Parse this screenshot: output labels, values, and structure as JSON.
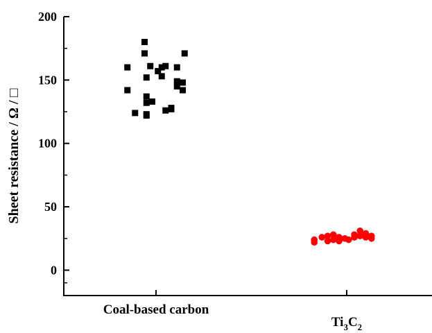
{
  "chart_data": {
    "type": "scatter",
    "title": "",
    "xlabel": "",
    "ylabel": "Sheet resistance / Ω / □",
    "categories": [
      "Coal-based carbon",
      "Ti3C2"
    ],
    "category_labels": [
      {
        "base": "Coal-based carbon",
        "sub1": "",
        "mid": "",
        "sub2": ""
      },
      {
        "base": "Ti",
        "sub1": "3",
        "mid": "C",
        "sub2": "2"
      }
    ],
    "ylim": [
      -20,
      200
    ],
    "yticks": [
      0,
      50,
      100,
      150,
      200
    ],
    "ytick_labels": [
      "0",
      "50",
      "100",
      "150",
      "200"
    ],
    "grid": false,
    "legend": "none",
    "series": [
      {
        "category": "Coal-based carbon",
        "marker": "square",
        "color": "#000000",
        "points": [
          [
            -0.15,
            160
          ],
          [
            -0.06,
            180
          ],
          [
            -0.06,
            171
          ],
          [
            0.15,
            171
          ],
          [
            -0.03,
            161
          ],
          [
            0.01,
            157
          ],
          [
            0.03,
            160
          ],
          [
            0.05,
            161
          ],
          [
            0.11,
            160
          ],
          [
            -0.15,
            142
          ],
          [
            -0.05,
            152
          ],
          [
            0.03,
            153
          ],
          [
            0.11,
            149
          ],
          [
            0.14,
            148
          ],
          [
            0.11,
            145
          ],
          [
            0.14,
            142
          ],
          [
            -0.05,
            123
          ],
          [
            -0.11,
            124
          ],
          [
            -0.05,
            122
          ],
          [
            -0.05,
            137
          ],
          [
            -0.05,
            132
          ],
          [
            -0.02,
            133
          ],
          [
            0.05,
            126
          ],
          [
            0.08,
            127
          ],
          [
            0.08,
            128
          ]
        ]
      },
      {
        "category": "Ti3C2",
        "marker": "circle",
        "color": "#ff0000",
        "points": [
          [
            -0.17,
            22
          ],
          [
            -0.17,
            24
          ],
          [
            -0.13,
            26
          ],
          [
            -0.1,
            27
          ],
          [
            -0.1,
            23
          ],
          [
            -0.07,
            28
          ],
          [
            -0.07,
            24
          ],
          [
            -0.04,
            26
          ],
          [
            -0.04,
            23
          ],
          [
            -0.01,
            25
          ],
          [
            0.01,
            24
          ],
          [
            0.04,
            26
          ],
          [
            0.04,
            28
          ],
          [
            0.07,
            31
          ],
          [
            0.07,
            27
          ],
          [
            0.1,
            29
          ],
          [
            0.1,
            26
          ],
          [
            0.13,
            25
          ],
          [
            0.13,
            27
          ]
        ]
      }
    ]
  }
}
